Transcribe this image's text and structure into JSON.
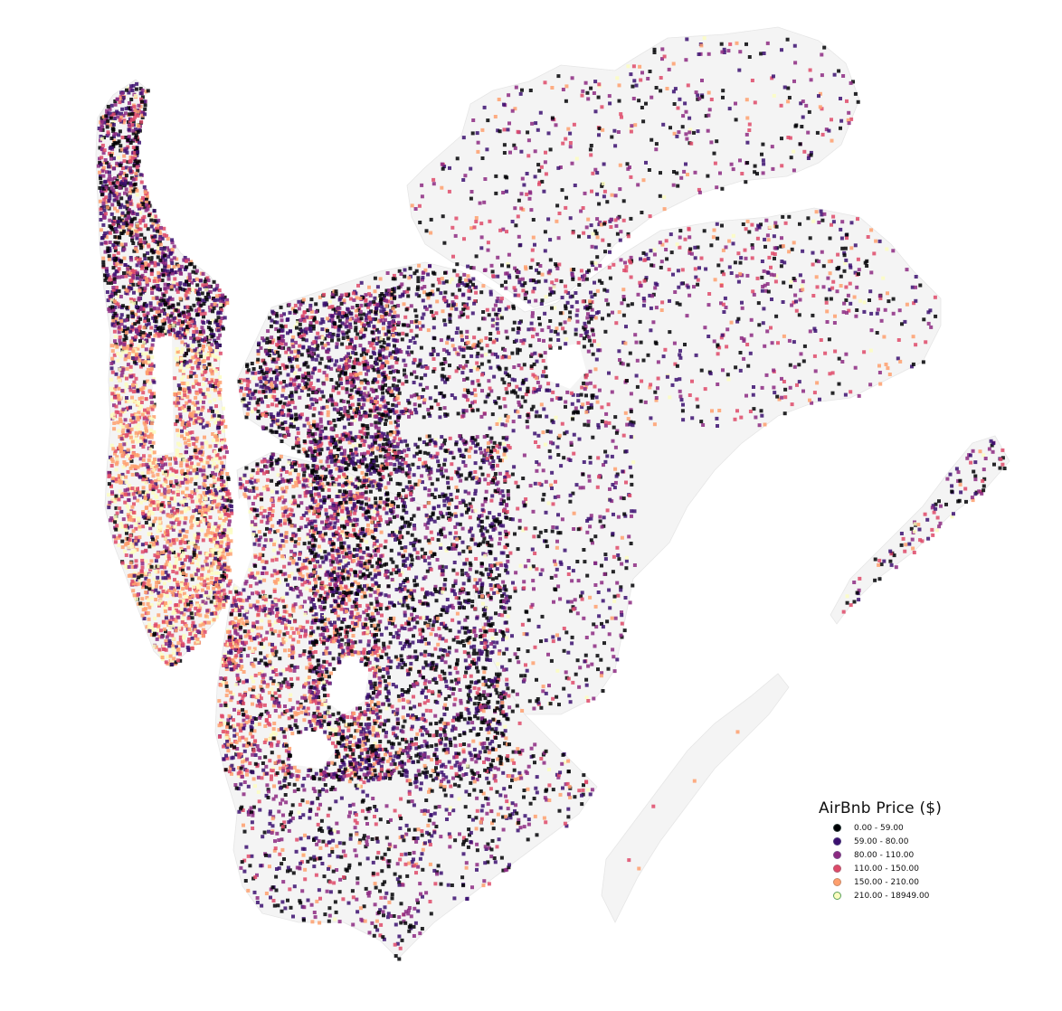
{
  "legend": {
    "title": "AirBnb Price ($)",
    "items": [
      {
        "label": "0.00 - 59.00",
        "color": "#000004",
        "edge": "#2a3a3a"
      },
      {
        "label": "59.00 - 80.00",
        "color": "#3b0f70",
        "edge": "#4c3a7a"
      },
      {
        "label": "80.00 - 110.00",
        "color": "#8c2981",
        "edge": "#7a4f8a"
      },
      {
        "label": "110.00 - 150.00",
        "color": "#de4968",
        "edge": "#b05c72"
      },
      {
        "label": "150.00 - 210.00",
        "color": "#fe9f6d",
        "edge": "#c98a6a"
      },
      {
        "label": "210.00 - 18949.00",
        "color": "#fcfdbf",
        "edge": "#5aa05a"
      }
    ]
  },
  "map": {
    "land_color": "#f4f4f4",
    "boundary_color": "#e6e6e6"
  }
}
